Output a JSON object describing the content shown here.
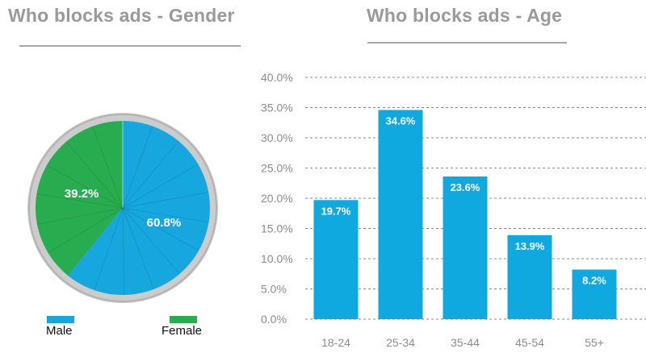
{
  "colors": {
    "male": "#16a7de",
    "female": "#27ad4f",
    "bar": "#0fa9e0",
    "pie_rim": "#cccccc",
    "pie_rim_shade": "#b3b3b3",
    "axis_text": "#8c8c8c",
    "grid": "#8a8a8a",
    "title": "#9a9a9a"
  },
  "chart_data": [
    {
      "type": "pie",
      "title": "Who blocks ads - Gender",
      "categories": [
        "Male",
        "Female"
      ],
      "values": [
        60.8,
        39.2
      ],
      "labels": [
        "60.8%",
        "39.2%"
      ],
      "legend": [
        "Male",
        "Female"
      ],
      "legend_position": "bottom"
    },
    {
      "type": "bar",
      "title": "Who blocks ads - Age",
      "categories": [
        "18-24",
        "25-34",
        "35-44",
        "45-54",
        "55+"
      ],
      "values": [
        19.7,
        34.6,
        23.6,
        13.9,
        8.2
      ],
      "labels": [
        "19.7%",
        "34.6%",
        "23.6%",
        "13.9%",
        "8.2%"
      ],
      "ylim": [
        0,
        40
      ],
      "yticks": [
        "0.0%",
        "5.0%",
        "10.0%",
        "15.0%",
        "20.0%",
        "25.0%",
        "30.0%",
        "35.0%",
        "40.0%"
      ],
      "grid": "dashed-horizontal",
      "xlabel": "",
      "ylabel": ""
    }
  ]
}
